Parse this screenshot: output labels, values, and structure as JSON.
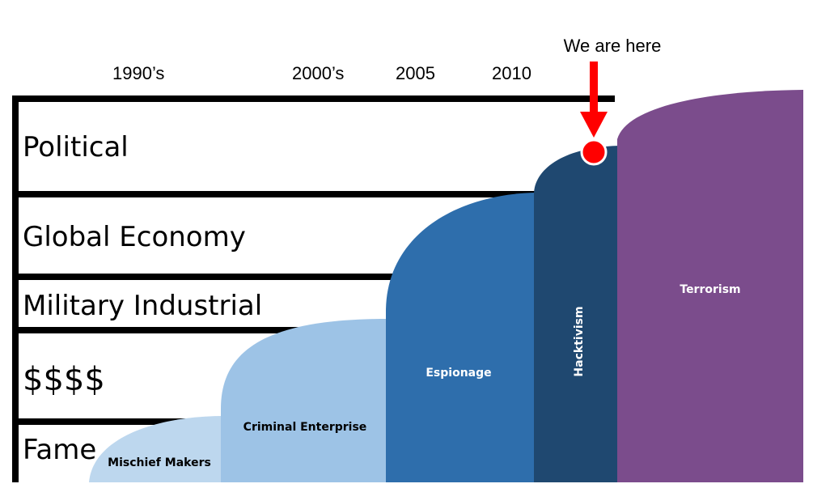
{
  "marker": {
    "label": "We are here",
    "arrow_color": "#ff0000",
    "dot_color": "#ff0000"
  },
  "eras": [
    "1990’s",
    "2000’s",
    "2005",
    "2010"
  ],
  "tiers": [
    "Political",
    "Global Economy",
    "Military Industrial",
    "$$$$",
    "Fame"
  ],
  "waves": [
    {
      "label": "Mischief Makers",
      "color": "#bdd7ee",
      "text_color": "#000000"
    },
    {
      "label": "Criminal Enterprise",
      "color": "#9dc3e6",
      "text_color": "#000000"
    },
    {
      "label": "Espionage",
      "color": "#2e6eac",
      "text_color": "#ffffff"
    },
    {
      "label": "Hacktivism",
      "color": "#1f4870",
      "text_color": "#ffffff"
    },
    {
      "label": "Terrorism",
      "color": "#7b4c8c",
      "text_color": "#ffffff"
    }
  ],
  "colors": {
    "frame": "#000000",
    "background": "#ffffff"
  }
}
